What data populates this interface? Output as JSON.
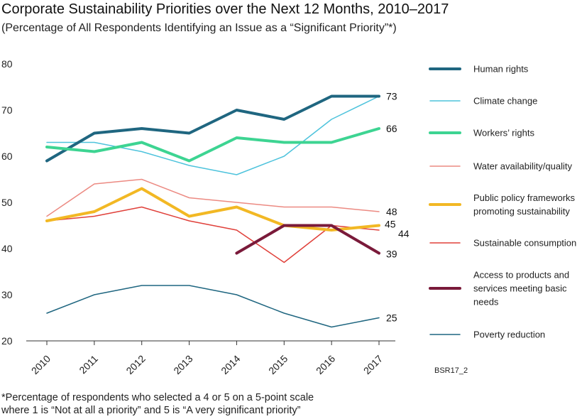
{
  "title": "Corporate Sustainability Priorities over the Next 12 Months, 2010–2017",
  "subtitle": "(Percentage of All Respondents Identifying an Issue as a “Significant Priority”*)",
  "source_code": "BSR17_2",
  "footnote": {
    "line1": "*Percentage of respondents who selected a 4 or 5 on a 5-point scale",
    "line2": "where 1 is “Not at all a priority” and 5 is “A very significant priority”"
  },
  "chart_data": {
    "type": "line",
    "x": [
      2010,
      2011,
      2012,
      2013,
      2014,
      2015,
      2016,
      2017
    ],
    "ylim": [
      20,
      80
    ],
    "yticks": [
      20,
      30,
      40,
      50,
      60,
      70,
      80
    ],
    "legend_position": "right",
    "series": [
      {
        "name": "Human rights",
        "color": "#1f6680",
        "width": 4,
        "values": [
          59,
          65,
          66,
          65,
          70,
          68,
          73,
          73
        ],
        "end_label": "73"
      },
      {
        "name": "Climate change",
        "color": "#4ec3dc",
        "width": 1.5,
        "values": [
          63,
          63,
          61,
          58,
          56,
          60,
          68,
          73
        ],
        "end_label": ""
      },
      {
        "name": "Workers’ rights",
        "color": "#3dd492",
        "width": 4,
        "values": [
          62,
          61,
          63,
          59,
          64,
          63,
          63,
          66
        ],
        "end_label": "66"
      },
      {
        "name": "Water availability/quality",
        "color": "#ec8a82",
        "width": 1.5,
        "values": [
          47,
          54,
          55,
          51,
          50,
          49,
          49,
          48
        ],
        "end_label": "48"
      },
      {
        "name": "Public policy frameworks promoting sustainability",
        "color": "#f2b824",
        "width": 4,
        "values": [
          46,
          48,
          53,
          47,
          49,
          45,
          44,
          45
        ],
        "end_label": "45"
      },
      {
        "name": "Sustainable consumption",
        "color": "#e0403a",
        "width": 1.5,
        "values": [
          46,
          47,
          49,
          46,
          44,
          37,
          45,
          44
        ],
        "end_label": "44"
      },
      {
        "name": "Access to products and services meeting basic needs",
        "color": "#7a1a3a",
        "width": 4,
        "values": [
          null,
          null,
          null,
          null,
          39,
          45,
          45,
          39
        ],
        "end_label": "39"
      },
      {
        "name": "Poverty reduction",
        "color": "#1f6680",
        "width": 1.5,
        "values": [
          26,
          30,
          32,
          32,
          30,
          26,
          23,
          25
        ],
        "end_label": "25"
      }
    ],
    "legend_lines": [
      [
        "Human rights"
      ],
      [
        "Climate change"
      ],
      [
        "Workers’ rights"
      ],
      [
        "Water availability/quality"
      ],
      [
        "Public policy frameworks",
        "promoting sustainability"
      ],
      [
        "Sustainable consumption"
      ],
      [
        "Access to products and",
        "services meeting basic",
        "needs"
      ],
      [
        "Poverty reduction"
      ]
    ]
  }
}
